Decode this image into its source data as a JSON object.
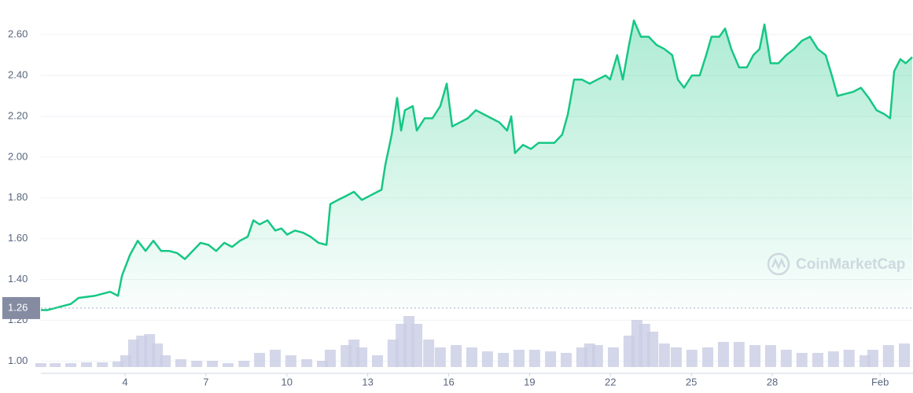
{
  "chart_data": {
    "type": "line",
    "series": [
      {
        "color": "#16c784",
        "x": [
          0.88,
          1.12,
          1.41,
          1.7,
          1.99,
          2.28,
          2.87,
          3.45,
          3.74,
          3.89,
          4.18,
          4.47,
          4.76,
          5.05,
          5.34,
          5.64,
          5.93,
          6.22,
          6.51,
          6.8,
          7.09,
          7.38,
          7.68,
          7.97,
          8.26,
          8.55,
          8.76,
          8.99,
          9.28,
          9.57,
          9.8,
          10.01,
          10.3,
          10.59,
          10.88,
          11.17,
          11.47,
          11.61,
          11.9,
          12.2,
          12.49,
          12.78,
          13.07,
          13.36,
          13.51,
          13.65,
          13.89,
          14.09,
          14.24,
          14.38,
          14.67,
          14.82,
          15.11,
          15.4,
          15.69,
          15.93,
          16.13,
          16.42,
          16.71,
          17.01,
          17.3,
          17.59,
          17.88,
          18.17,
          18.32,
          18.46,
          18.76,
          19.05,
          19.34,
          19.63,
          19.92,
          20.21,
          20.42,
          20.65,
          20.94,
          21.23,
          21.52,
          21.82,
          21.99,
          22.25,
          22.46,
          22.69,
          22.87,
          23.13,
          23.42,
          23.71,
          24.0,
          24.29,
          24.5,
          24.73,
          25.02,
          25.31,
          25.55,
          25.75,
          26.04,
          26.25,
          26.48,
          26.77,
          27.06,
          27.3,
          27.53,
          27.71,
          27.94,
          28.23,
          28.52,
          28.81,
          29.1,
          29.4,
          29.69,
          29.98,
          30.21,
          30.42,
          30.71,
          31.0,
          31.29,
          31.58,
          31.87,
          32.17,
          32.37,
          32.52,
          32.75,
          32.95,
          33.19
        ],
        "values": [
          1.25,
          1.25,
          1.26,
          1.27,
          1.28,
          1.31,
          1.32,
          1.34,
          1.32,
          1.42,
          1.52,
          1.59,
          1.54,
          1.59,
          1.54,
          1.54,
          1.53,
          1.5,
          1.54,
          1.58,
          1.57,
          1.54,
          1.58,
          1.56,
          1.59,
          1.61,
          1.69,
          1.67,
          1.69,
          1.64,
          1.65,
          1.62,
          1.64,
          1.63,
          1.61,
          1.58,
          1.57,
          1.77,
          1.79,
          1.81,
          1.83,
          1.79,
          1.81,
          1.83,
          1.84,
          1.96,
          2.11,
          2.29,
          2.13,
          2.23,
          2.25,
          2.13,
          2.19,
          2.19,
          2.25,
          2.36,
          2.15,
          2.17,
          2.19,
          2.23,
          2.21,
          2.19,
          2.17,
          2.13,
          2.2,
          2.02,
          2.06,
          2.04,
          2.07,
          2.07,
          2.07,
          2.11,
          2.21,
          2.38,
          2.38,
          2.36,
          2.38,
          2.4,
          2.38,
          2.5,
          2.38,
          2.55,
          2.67,
          2.59,
          2.59,
          2.55,
          2.53,
          2.5,
          2.38,
          2.34,
          2.4,
          2.4,
          2.5,
          2.59,
          2.59,
          2.63,
          2.53,
          2.44,
          2.44,
          2.5,
          2.53,
          2.65,
          2.46,
          2.46,
          2.5,
          2.53,
          2.57,
          2.59,
          2.53,
          2.5,
          2.4,
          2.3,
          2.31,
          2.32,
          2.34,
          2.29,
          2.23,
          2.21,
          2.19,
          2.42,
          2.48,
          2.46,
          2.49
        ]
      }
    ],
    "volume": {
      "color": "#c9cde4",
      "x": [
        0.88,
        1.41,
        1.99,
        2.57,
        3.16,
        3.74,
        4.03,
        4.32,
        4.62,
        4.91,
        5.2,
        5.49,
        6.07,
        6.66,
        7.24,
        7.82,
        8.41,
        8.99,
        9.57,
        10.15,
        10.74,
        11.32,
        11.61,
        12.2,
        12.49,
        12.78,
        13.36,
        13.94,
        14.24,
        14.53,
        14.82,
        15.26,
        15.69,
        16.28,
        16.86,
        17.44,
        18.03,
        18.61,
        19.19,
        19.78,
        20.36,
        20.94,
        21.23,
        21.52,
        22.11,
        22.69,
        22.98,
        23.27,
        23.57,
        24.0,
        24.44,
        25.02,
        25.61,
        26.19,
        26.77,
        27.36,
        27.94,
        28.52,
        29.1,
        29.69,
        30.27,
        30.85,
        31.44,
        31.73,
        32.31,
        32.9
      ],
      "values": [
        5,
        5,
        5,
        6,
        6,
        7,
        15,
        35,
        40,
        42,
        30,
        15,
        10,
        8,
        8,
        5,
        8,
        18,
        22,
        15,
        10,
        8,
        22,
        28,
        35,
        25,
        15,
        35,
        55,
        65,
        55,
        35,
        25,
        28,
        25,
        20,
        18,
        22,
        22,
        20,
        18,
        25,
        30,
        28,
        25,
        40,
        60,
        55,
        45,
        30,
        25,
        22,
        25,
        32,
        32,
        28,
        28,
        22,
        18,
        18,
        20,
        22,
        15,
        22,
        28,
        30
      ]
    },
    "xlim": [
      0.88,
      33.22
    ],
    "xticks": [
      4,
      7,
      10,
      13,
      16,
      19,
      22,
      25,
      28,
      {
        "value": 32,
        "label": "Feb"
      }
    ],
    "ylim": [
      0.94,
      2.77
    ],
    "yticks": [
      {
        "value": 1,
        "label": "1.00"
      },
      {
        "value": 1.2,
        "label": "1.20"
      },
      {
        "value": 1.4,
        "label": "1.40"
      },
      {
        "value": 1.6,
        "label": "1.60"
      },
      {
        "value": 1.8,
        "label": "1.80"
      },
      {
        "value": 2,
        "label": "2.00"
      },
      {
        "value": 2.2,
        "label": "2.20"
      },
      {
        "value": 2.4,
        "label": "2.40"
      },
      {
        "value": 2.6,
        "label": "2.60"
      }
    ],
    "y2lim": [
      0,
      100
    ],
    "grid": true,
    "start_price": 1.26,
    "watermark": "CoinMarketCap"
  }
}
